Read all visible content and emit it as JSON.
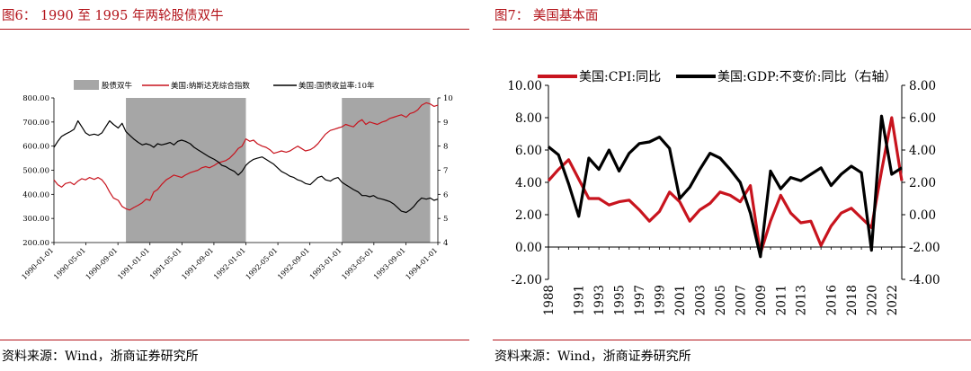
{
  "figure6": {
    "title": "图6： 1990 至 1995 年两轮股债双牛",
    "source": "资料来源：Wind，浙商证券研究所"
  },
  "figure7": {
    "title": "图7： 美国基本面",
    "source": "资料来源：Wind，浙商证券研究所"
  },
  "colors": {
    "accent_red": "#b3141b",
    "series_red": "#c8141e",
    "series_black": "#000000",
    "shade_gray": "#a6a6a6"
  },
  "chart_data": [
    {
      "type": "line",
      "title": "",
      "legend": [
        "股债双牛",
        "美国:纳斯达克综合指数",
        "美国:国债收益率:10年"
      ],
      "legend_position": "top",
      "x_ticks": [
        "1990-01-01",
        "1990-05-01",
        "1990-09-01",
        "1991-01-01",
        "1991-05-01",
        "1991-09-01",
        "1992-01-01",
        "1992-05-01",
        "1992-09-01",
        "1993-01-01",
        "1993-05-01",
        "1993-09-01",
        "1994-01-01"
      ],
      "x_range": [
        1990.0,
        1994.0
      ],
      "y_left": {
        "range": [
          200,
          800
        ],
        "ticks": [
          "200.00",
          "300.00",
          "400.00",
          "500.00",
          "600.00",
          "700.00",
          "800.00"
        ]
      },
      "y_right": {
        "range": [
          4,
          10
        ],
        "ticks": [
          "4",
          "5",
          "6",
          "7",
          "8",
          "9",
          "10"
        ]
      },
      "shaded_periods": [
        [
          1990.75,
          1992.0
        ],
        [
          1993.0,
          1993.92
        ]
      ],
      "series": [
        {
          "name": "美国:纳斯达克综合指数",
          "axis": "left",
          "x": [
            1990.0,
            1990.04,
            1990.08,
            1990.12,
            1990.17,
            1990.21,
            1990.25,
            1990.29,
            1990.33,
            1990.37,
            1990.42,
            1990.46,
            1990.5,
            1990.54,
            1990.58,
            1990.62,
            1990.67,
            1990.71,
            1990.75,
            1990.79,
            1990.83,
            1990.88,
            1990.92,
            1990.96,
            1991.0,
            1991.04,
            1991.08,
            1991.12,
            1991.17,
            1991.21,
            1991.25,
            1991.29,
            1991.33,
            1991.37,
            1991.42,
            1991.46,
            1991.5,
            1991.54,
            1991.58,
            1991.62,
            1991.67,
            1991.71,
            1991.75,
            1991.79,
            1991.83,
            1991.88,
            1991.92,
            1991.96,
            1992.0,
            1992.04,
            1992.08,
            1992.12,
            1992.17,
            1992.21,
            1992.25,
            1992.29,
            1992.33,
            1992.37,
            1992.42,
            1992.46,
            1992.5,
            1992.54,
            1992.58,
            1992.62,
            1992.67,
            1992.71,
            1992.75,
            1992.79,
            1992.83,
            1992.88,
            1992.92,
            1992.96,
            1993.0,
            1993.04,
            1993.08,
            1993.12,
            1993.17,
            1993.21,
            1993.25,
            1993.29,
            1993.33,
            1993.37,
            1993.42,
            1993.46,
            1993.5,
            1993.54,
            1993.58,
            1993.62,
            1993.67,
            1993.71,
            1993.75,
            1993.79,
            1993.83,
            1993.88,
            1993.92,
            1993.96,
            1994.0
          ],
          "y": [
            460,
            440,
            430,
            445,
            450,
            440,
            455,
            465,
            460,
            470,
            462,
            470,
            460,
            440,
            410,
            385,
            375,
            350,
            340,
            335,
            345,
            355,
            365,
            380,
            375,
            410,
            420,
            440,
            460,
            470,
            480,
            475,
            470,
            480,
            490,
            495,
            500,
            510,
            515,
            510,
            520,
            530,
            535,
            540,
            550,
            570,
            590,
            600,
            630,
            620,
            625,
            610,
            600,
            595,
            585,
            570,
            575,
            580,
            575,
            580,
            590,
            600,
            590,
            580,
            585,
            595,
            610,
            630,
            650,
            665,
            670,
            675,
            680,
            690,
            685,
            680,
            700,
            710,
            690,
            700,
            695,
            690,
            700,
            705,
            715,
            720,
            725,
            730,
            720,
            735,
            740,
            750,
            770,
            780,
            775,
            765,
            770
          ]
        },
        {
          "name": "美国:国债收益率:10年",
          "axis": "right",
          "x": [
            1990.0,
            1990.04,
            1990.08,
            1990.12,
            1990.17,
            1990.21,
            1990.25,
            1990.29,
            1990.33,
            1990.37,
            1990.42,
            1990.46,
            1990.5,
            1990.54,
            1990.58,
            1990.62,
            1990.67,
            1990.71,
            1990.75,
            1990.79,
            1990.83,
            1990.88,
            1990.92,
            1990.96,
            1991.0,
            1991.04,
            1991.08,
            1991.12,
            1991.17,
            1991.21,
            1991.25,
            1991.29,
            1991.33,
            1991.37,
            1991.42,
            1991.46,
            1991.5,
            1991.54,
            1991.58,
            1991.62,
            1991.67,
            1991.71,
            1991.75,
            1991.79,
            1991.83,
            1991.88,
            1991.92,
            1991.96,
            1992.0,
            1992.04,
            1992.08,
            1992.12,
            1992.17,
            1992.21,
            1992.25,
            1992.29,
            1992.33,
            1992.37,
            1992.42,
            1992.46,
            1992.5,
            1992.54,
            1992.58,
            1992.62,
            1992.67,
            1992.71,
            1992.75,
            1992.79,
            1992.83,
            1992.88,
            1992.92,
            1992.96,
            1993.0,
            1993.04,
            1993.08,
            1993.12,
            1993.17,
            1993.21,
            1993.25,
            1993.29,
            1993.33,
            1993.37,
            1993.42,
            1993.46,
            1993.5,
            1993.54,
            1993.58,
            1993.62,
            1993.67,
            1993.71,
            1993.75,
            1993.79,
            1993.83,
            1993.88,
            1993.92,
            1993.96,
            1994.0
          ],
          "y": [
            7.95,
            8.2,
            8.4,
            8.5,
            8.6,
            8.7,
            9.05,
            8.8,
            8.55,
            8.45,
            8.5,
            8.45,
            8.55,
            8.8,
            9.05,
            8.9,
            8.75,
            8.95,
            8.6,
            8.45,
            8.3,
            8.15,
            8.05,
            8.1,
            8.05,
            7.95,
            8.1,
            8.05,
            8.1,
            8.15,
            8.05,
            8.2,
            8.25,
            8.2,
            8.1,
            7.95,
            7.85,
            7.75,
            7.65,
            7.55,
            7.45,
            7.35,
            7.2,
            7.15,
            7.05,
            6.95,
            6.8,
            6.95,
            7.2,
            7.35,
            7.45,
            7.5,
            7.55,
            7.45,
            7.35,
            7.25,
            7.1,
            6.95,
            6.85,
            6.75,
            6.7,
            6.6,
            6.55,
            6.45,
            6.4,
            6.55,
            6.7,
            6.75,
            6.6,
            6.55,
            6.65,
            6.7,
            6.5,
            6.4,
            6.3,
            6.2,
            6.1,
            5.95,
            5.95,
            5.9,
            5.95,
            5.85,
            5.8,
            5.75,
            5.7,
            5.6,
            5.45,
            5.3,
            5.25,
            5.35,
            5.5,
            5.7,
            5.85,
            5.8,
            5.85,
            5.75,
            5.8
          ]
        }
      ]
    },
    {
      "type": "line",
      "title": "",
      "legend": [
        "美国:CPI:同比",
        "美国:GDP:不变价:同比（右轴）"
      ],
      "legend_position": "top",
      "x": [
        1988,
        1989,
        1990,
        1991,
        1992,
        1993,
        1994,
        1995,
        1996,
        1997,
        1998,
        1999,
        2000,
        2001,
        2002,
        2003,
        2004,
        2005,
        2006,
        2007,
        2008,
        2009,
        2010,
        2011,
        2012,
        2013,
        2014,
        2015,
        2016,
        2017,
        2018,
        2019,
        2020,
        2021,
        2022,
        2023
      ],
      "x_tick_labels": [
        "1988",
        "1991",
        "1993",
        "1995",
        "1997",
        "1999",
        "2001",
        "2003",
        "2005",
        "2007",
        "2009",
        "2011",
        "2013",
        "2016",
        "2018",
        "2020",
        "2022"
      ],
      "x_tick_years": [
        1988,
        1991,
        1993,
        1995,
        1997,
        1999,
        2001,
        2003,
        2005,
        2007,
        2009,
        2011,
        2013,
        2016,
        2018,
        2020,
        2022
      ],
      "y_left": {
        "range": [
          -2,
          10
        ],
        "ticks": [
          "-2.00",
          "0.00",
          "2.00",
          "4.00",
          "6.00",
          "8.00",
          "10.00"
        ]
      },
      "y_right": {
        "range": [
          -4,
          8
        ],
        "ticks": [
          "-4.00",
          "-2.00",
          "0.00",
          "2.00",
          "4.00",
          "6.00",
          "8.00"
        ]
      },
      "series": [
        {
          "name": "美国:CPI:同比",
          "axis": "left",
          "y": [
            4.1,
            4.8,
            5.4,
            4.2,
            3.0,
            3.0,
            2.6,
            2.8,
            2.9,
            2.3,
            1.6,
            2.2,
            3.4,
            2.8,
            1.6,
            2.3,
            2.7,
            3.4,
            3.2,
            2.8,
            3.8,
            -0.4,
            1.6,
            3.2,
            2.1,
            1.5,
            1.6,
            0.1,
            1.3,
            2.1,
            2.4,
            1.8,
            1.2,
            4.7,
            8.0,
            4.1
          ]
        },
        {
          "name": "美国:GDP:不变价:同比（右轴）",
          "axis": "right",
          "y": [
            4.2,
            3.7,
            1.9,
            -0.1,
            3.5,
            2.8,
            4.0,
            2.7,
            3.8,
            4.4,
            4.5,
            4.8,
            4.1,
            1.0,
            1.7,
            2.8,
            3.8,
            3.5,
            2.8,
            2.0,
            0.1,
            -2.6,
            2.7,
            1.6,
            2.3,
            2.1,
            2.5,
            2.9,
            1.8,
            2.5,
            3.0,
            2.6,
            -2.2,
            6.1,
            2.5,
            2.9
          ]
        }
      ]
    }
  ]
}
